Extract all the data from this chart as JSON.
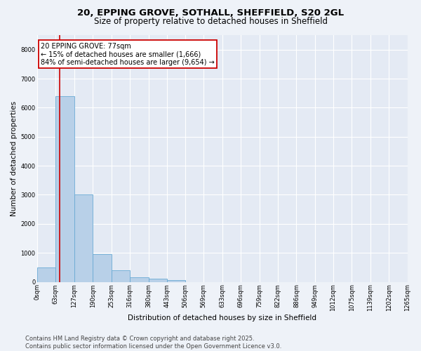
{
  "title_line1": "20, EPPING GROVE, SOTHALL, SHEFFIELD, S20 2GL",
  "title_line2": "Size of property relative to detached houses in Sheffield",
  "xlabel": "Distribution of detached houses by size in Sheffield",
  "ylabel": "Number of detached properties",
  "bar_values": [
    500,
    6400,
    3000,
    950,
    400,
    150,
    100,
    50,
    0,
    0,
    0,
    0,
    0,
    0,
    0,
    0,
    0,
    0,
    0
  ],
  "bin_edges": [
    0,
    63,
    127,
    190,
    253,
    316,
    380,
    443,
    506,
    569,
    633,
    696,
    759,
    822,
    886,
    949,
    1012,
    1075,
    1139,
    1202,
    1265
  ],
  "tick_labels": [
    "0sqm",
    "63sqm",
    "127sqm",
    "190sqm",
    "253sqm",
    "316sqm",
    "380sqm",
    "443sqm",
    "506sqm",
    "569sqm",
    "633sqm",
    "696sqm",
    "759sqm",
    "822sqm",
    "886sqm",
    "949sqm",
    "1012sqm",
    "1075sqm",
    "1139sqm",
    "1202sqm",
    "1265sqm"
  ],
  "bar_color": "#b8d0e8",
  "bar_edge_color": "#6aaad4",
  "vline_x": 77,
  "vline_color": "#cc0000",
  "ylim": [
    0,
    8500
  ],
  "yticks": [
    0,
    1000,
    2000,
    3000,
    4000,
    5000,
    6000,
    7000,
    8000
  ],
  "annotation_box_text": "20 EPPING GROVE: 77sqm\n← 15% of detached houses are smaller (1,666)\n84% of semi-detached houses are larger (9,654) →",
  "annotation_box_color": "#cc0000",
  "annotation_box_fill": "#ffffff",
  "footer_line1": "Contains HM Land Registry data © Crown copyright and database right 2025.",
  "footer_line2": "Contains public sector information licensed under the Open Government Licence v3.0.",
  "background_color": "#eef2f8",
  "plot_bg_color": "#e4eaf4",
  "grid_color": "#ffffff",
  "title_fontsize": 9.5,
  "subtitle_fontsize": 8.5,
  "ylabel_fontsize": 7.5,
  "xlabel_fontsize": 7.5,
  "tick_fontsize": 6,
  "annot_fontsize": 7,
  "footer_fontsize": 6
}
